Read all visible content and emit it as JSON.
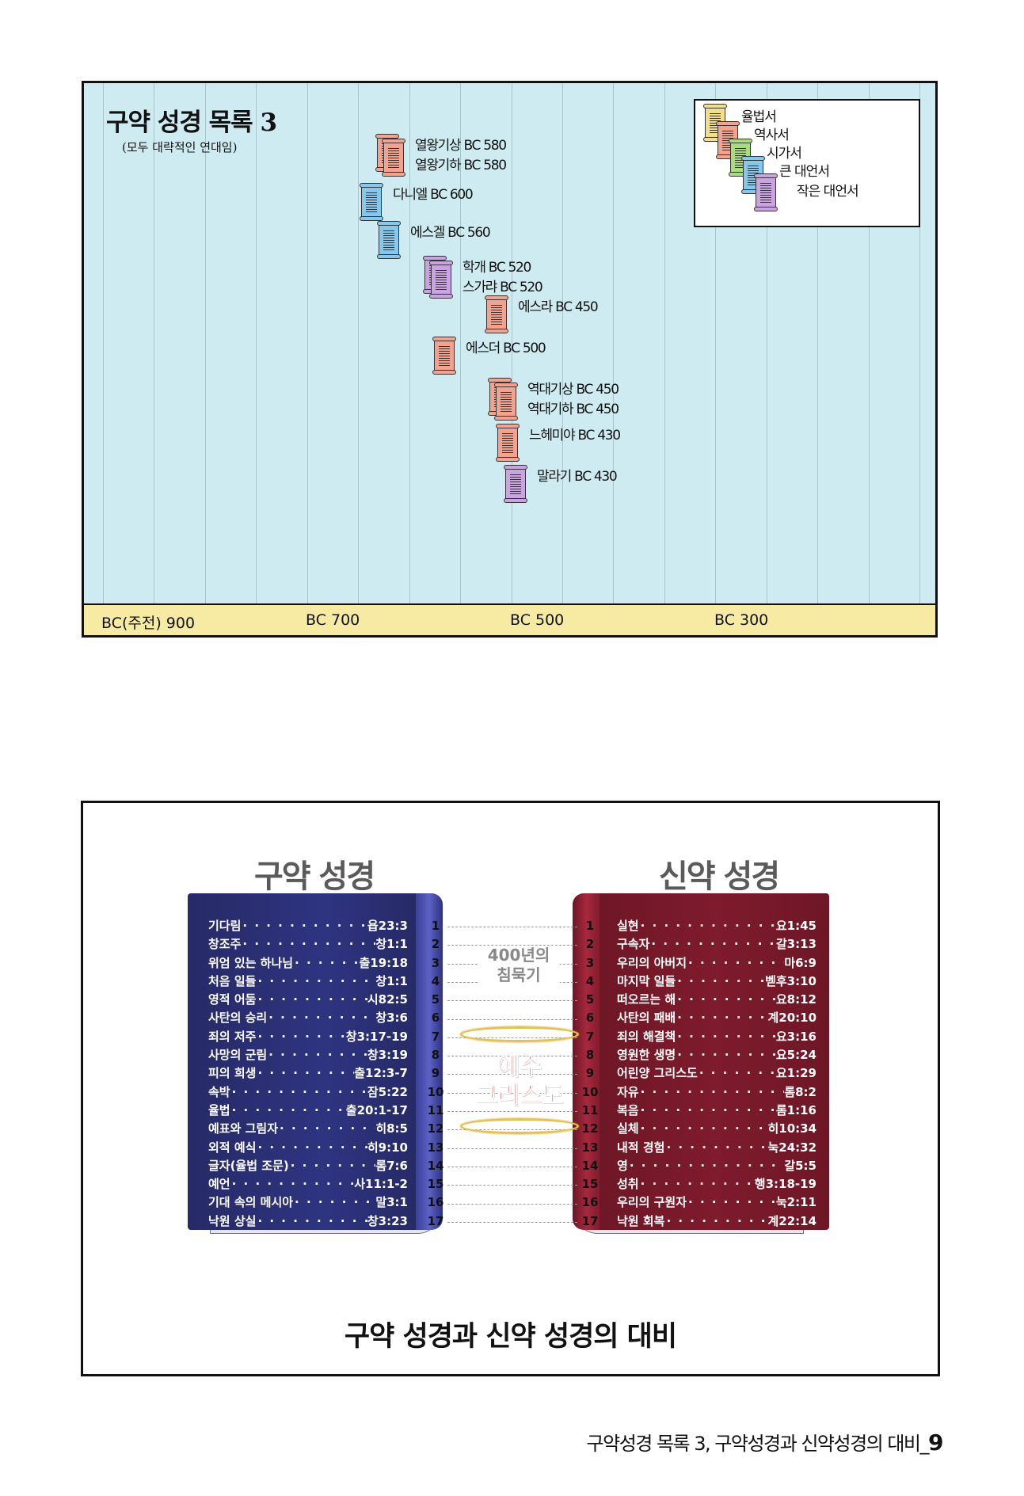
{
  "timeline": {
    "title": "구약 성경 목록 3",
    "subtitle": "(모두 대략적인 연대임)",
    "axis_ticks": [
      "BC(주전) 900",
      "BC 700",
      "BC 500",
      "BC 300"
    ],
    "entries": [
      {
        "labels": [
          "열왕기상 BC 580",
          "열왕기하 BC 580"
        ],
        "category": "역사서"
      },
      {
        "labels": [
          "다니엘 BC 600"
        ],
        "category": "큰 대언서"
      },
      {
        "labels": [
          "에스겔 BC 560"
        ],
        "category": "큰 대언서"
      },
      {
        "labels": [
          "학개 BC 520",
          "스가랴 BC 520"
        ],
        "category": "작은 대언서"
      },
      {
        "labels": [
          "에스라 BC 450"
        ],
        "category": "역사서"
      },
      {
        "labels": [
          "에스더 BC 500"
        ],
        "category": "역사서"
      },
      {
        "labels": [
          "역대기상 BC 450",
          "역대기하 BC 450"
        ],
        "category": "역사서"
      },
      {
        "labels": [
          "느헤미야 BC 430"
        ],
        "category": "역사서"
      },
      {
        "labels": [
          "말라기 BC 430"
        ],
        "category": "작은 대언서"
      }
    ],
    "legend": [
      {
        "label": "율법서",
        "color": "#f2df8a"
      },
      {
        "label": "역사서",
        "color": "#f1a38f"
      },
      {
        "label": "시가서",
        "color": "#a8dc7e"
      },
      {
        "label": "큰 대언서",
        "color": "#86c7ec"
      },
      {
        "label": "작은 대언서",
        "color": "#caa4e0"
      }
    ]
  },
  "comparison": {
    "old_title": "구약 성경",
    "new_title": "신약 성경",
    "silence_label_1": "400년의",
    "silence_label_2": "침묵기",
    "jesus_label_1": "예수",
    "jesus_label_2": "그리스도",
    "caption": "구약 성경과 신약 성경의 대비",
    "numbers": [
      "1",
      "2",
      "3",
      "4",
      "5",
      "6",
      "7",
      "8",
      "9",
      "10",
      "11",
      "12",
      "13",
      "14",
      "15",
      "16",
      "17"
    ],
    "old_rows": [
      {
        "t": "기다림",
        "r": "욥23:3"
      },
      {
        "t": "창조주",
        "r": "창1:1"
      },
      {
        "t": "위엄 있는 하나님",
        "r": "출19:18"
      },
      {
        "t": "처음 일들",
        "r": "창1:1"
      },
      {
        "t": "영적 어둠",
        "r": "시82:5"
      },
      {
        "t": "사탄의 승리",
        "r": "창3:6"
      },
      {
        "t": "죄의 저주",
        "r": "창3:17-19"
      },
      {
        "t": "사망의 군림",
        "r": "창3:19"
      },
      {
        "t": "피의 희생",
        "r": "출12:3-7"
      },
      {
        "t": "속박",
        "r": "잠5:22"
      },
      {
        "t": "율법",
        "r": "출20:1-17"
      },
      {
        "t": "예표와 그림자",
        "r": "히8:5"
      },
      {
        "t": "외적 예식",
        "r": "히9:10"
      },
      {
        "t": "글자(율법 조문)",
        "r": "롬7:6"
      },
      {
        "t": "예언",
        "r": "사11:1-2"
      },
      {
        "t": "기대 속의 메시아",
        "r": "말3:1"
      },
      {
        "t": "낙원 상실",
        "r": "창3:23"
      }
    ],
    "new_rows": [
      {
        "t": "실현",
        "r": "요1:45"
      },
      {
        "t": "구속자",
        "r": "갈3:13"
      },
      {
        "t": "우리의 아버지",
        "r": "마6:9"
      },
      {
        "t": "마지막 일들",
        "r": "벧후3:10"
      },
      {
        "t": "떠오르는 해",
        "r": "요8:12"
      },
      {
        "t": "사탄의 패배",
        "r": "계20:10"
      },
      {
        "t": "죄의 해결책",
        "r": "요3:16"
      },
      {
        "t": "영원한 생명",
        "r": "요5:24"
      },
      {
        "t": "어린양 그리스도",
        "r": "요1:29"
      },
      {
        "t": "자유",
        "r": "롬8:2"
      },
      {
        "t": "복음",
        "r": "롬1:16"
      },
      {
        "t": "실체",
        "r": "히10:34"
      },
      {
        "t": "내적 경험",
        "r": "눅24:32"
      },
      {
        "t": "영",
        "r": "갈5:5"
      },
      {
        "t": "성취",
        "r": "행3:18-19"
      },
      {
        "t": "우리의 구원자",
        "r": "눅2:11"
      },
      {
        "t": "낙원 회복",
        "r": "계22:14"
      }
    ]
  },
  "footer": {
    "text": "구약성경 목록 3, 구약성경과 신약성경의 대비_",
    "page": "9"
  }
}
